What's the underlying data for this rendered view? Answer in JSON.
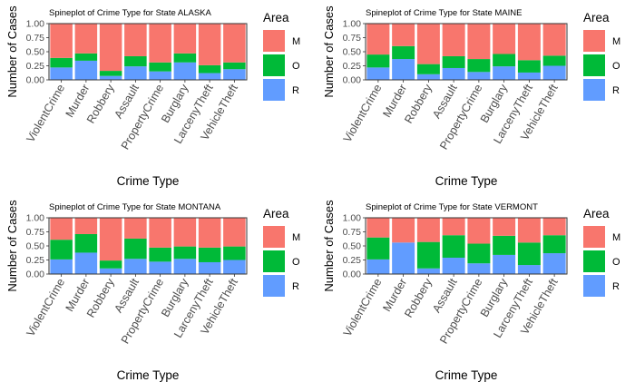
{
  "chart_data": [
    {
      "type": "bar",
      "stacked": true,
      "title": "Spineplot of Crime Type for State ALASKA",
      "xlabel": "Crime Type",
      "ylabel": "Number of Cases",
      "ylim": [
        0,
        1
      ],
      "yticks": [
        "0.00",
        "0.25",
        "0.50",
        "0.75",
        "1.00"
      ],
      "legend_title": "Area",
      "categories": [
        "ViolentCrime",
        "Murder",
        "Robbery",
        "Assault",
        "PropertyCrime",
        "Burglary",
        "LarcenyTheft",
        "VehicleTheft"
      ],
      "series": [
        {
          "name": "R",
          "color": "#619CFF",
          "values": [
            0.22,
            0.34,
            0.07,
            0.24,
            0.15,
            0.31,
            0.12,
            0.19
          ]
        },
        {
          "name": "O",
          "color": "#00BA38",
          "values": [
            0.17,
            0.13,
            0.09,
            0.18,
            0.16,
            0.16,
            0.14,
            0.12
          ]
        },
        {
          "name": "M",
          "color": "#F8766D",
          "values": [
            0.61,
            0.53,
            0.84,
            0.58,
            0.69,
            0.53,
            0.74,
            0.69
          ]
        }
      ]
    },
    {
      "type": "bar",
      "stacked": true,
      "title": "Spineplot of Crime Type for State MAINE",
      "xlabel": "Crime Type",
      "ylabel": "Number of Cases",
      "ylim": [
        0,
        1
      ],
      "yticks": [
        "0.00",
        "0.25",
        "0.50",
        "0.75",
        "1.00"
      ],
      "legend_title": "Area",
      "categories": [
        "ViolentCrime",
        "Murder",
        "Robbery",
        "Assault",
        "PropertyCrime",
        "Burglary",
        "LarcenyTheft",
        "VehicleTheft"
      ],
      "series": [
        {
          "name": "R",
          "color": "#619CFF",
          "values": [
            0.22,
            0.37,
            0.1,
            0.21,
            0.14,
            0.24,
            0.13,
            0.25
          ]
        },
        {
          "name": "O",
          "color": "#00BA38",
          "values": [
            0.23,
            0.23,
            0.18,
            0.21,
            0.23,
            0.22,
            0.22,
            0.18
          ]
        },
        {
          "name": "M",
          "color": "#F8766D",
          "values": [
            0.55,
            0.4,
            0.72,
            0.58,
            0.63,
            0.54,
            0.65,
            0.57
          ]
        }
      ]
    },
    {
      "type": "bar",
      "stacked": true,
      "title": "Spineplot of Crime Type for State MONTANA",
      "xlabel": "Crime Type",
      "ylabel": "Number of Cases",
      "ylim": [
        0,
        1
      ],
      "yticks": [
        "0.00",
        "0.25",
        "0.50",
        "0.75",
        "1.00"
      ],
      "legend_title": "Area",
      "categories": [
        "ViolentCrime",
        "Murder",
        "Robbery",
        "Assault",
        "PropertyCrime",
        "Burglary",
        "LarcenyTheft",
        "VehicleTheft"
      ],
      "series": [
        {
          "name": "R",
          "color": "#619CFF",
          "values": [
            0.26,
            0.38,
            0.1,
            0.27,
            0.22,
            0.27,
            0.21,
            0.25
          ]
        },
        {
          "name": "O",
          "color": "#00BA38",
          "values": [
            0.35,
            0.33,
            0.14,
            0.36,
            0.25,
            0.22,
            0.26,
            0.24
          ]
        },
        {
          "name": "M",
          "color": "#F8766D",
          "values": [
            0.39,
            0.29,
            0.76,
            0.37,
            0.53,
            0.51,
            0.53,
            0.51
          ]
        }
      ]
    },
    {
      "type": "bar",
      "stacked": true,
      "title": "Spineplot of Crime Type for State VERMONT",
      "xlabel": "Crime Type",
      "ylabel": "Number of Cases",
      "ylim": [
        0,
        1
      ],
      "yticks": [
        "0.00",
        "0.25",
        "0.50",
        "0.75",
        "1.00"
      ],
      "legend_title": "Area",
      "categories": [
        "ViolentCrime",
        "Murder",
        "Robbery",
        "Assault",
        "PropertyCrime",
        "Burglary",
        "LarcenyTheft",
        "VehicleTheft"
      ],
      "series": [
        {
          "name": "R",
          "color": "#619CFF",
          "values": [
            0.26,
            0.56,
            0.1,
            0.29,
            0.19,
            0.34,
            0.16,
            0.37
          ]
        },
        {
          "name": "O",
          "color": "#00BA38",
          "values": [
            0.39,
            0.0,
            0.47,
            0.4,
            0.35,
            0.34,
            0.4,
            0.32
          ]
        },
        {
          "name": "M",
          "color": "#F8766D",
          "values": [
            0.35,
            0.44,
            0.43,
            0.31,
            0.46,
            0.32,
            0.44,
            0.31
          ]
        }
      ]
    }
  ]
}
